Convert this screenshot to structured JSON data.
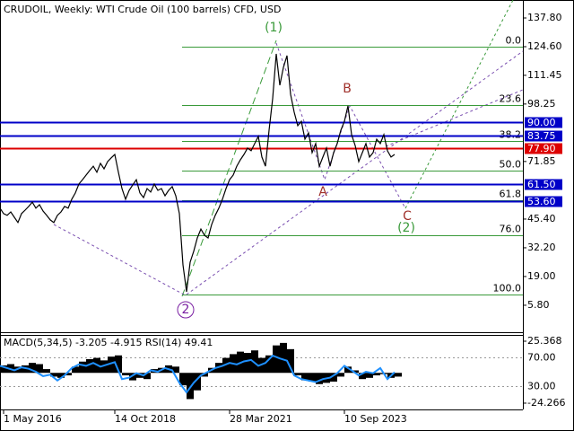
{
  "chart_data": [
    {
      "type": "line",
      "title": "CRUDOIL, Weekly:  WTI Crude Oil (100 barrels) CFD, USD",
      "categories": [
        null,
        "1 May 2016",
        null,
        null,
        null,
        null,
        null,
        null,
        null,
        null,
        null,
        null,
        null,
        null,
        null,
        null,
        null,
        null,
        null,
        null,
        null,
        null,
        null,
        null,
        null,
        null,
        null,
        null,
        null,
        null,
        null,
        null,
        "14 Oct 2018",
        null,
        null,
        null,
        null,
        null,
        null,
        null,
        null,
        null,
        null,
        null,
        null,
        null,
        null,
        null,
        null,
        null,
        null,
        null,
        null,
        null,
        null,
        null,
        null,
        null,
        null,
        null,
        null,
        null,
        null,
        null,
        "28 Mar 2021",
        null,
        null,
        null,
        null,
        null,
        null,
        null,
        null,
        null,
        null,
        null,
        null,
        null,
        null,
        null,
        null,
        null,
        null,
        null,
        null,
        null,
        null,
        null,
        null,
        null,
        null,
        null,
        null,
        null,
        null,
        null,
        "10 Sep 2023",
        null,
        null,
        null,
        null,
        null,
        null,
        null,
        null,
        null,
        null,
        null,
        null,
        null,
        null
      ],
      "values": [
        50.4,
        47.9,
        47.1,
        48.7,
        46.2,
        43.8,
        47.9,
        49.5,
        51.2,
        53.2,
        50.4,
        52.0,
        49.1,
        47.1,
        45.0,
        43.8,
        47.1,
        48.7,
        51.2,
        50.4,
        54.5,
        57.4,
        61.5,
        63.5,
        65.6,
        67.7,
        69.7,
        66.9,
        71.0,
        68.5,
        71.8,
        73.5,
        75.1,
        66.9,
        59.4,
        54.5,
        58.6,
        61.1,
        63.5,
        57.4,
        55.3,
        59.4,
        57.8,
        61.5,
        58.6,
        59.4,
        56.1,
        58.6,
        60.3,
        56.1,
        47.9,
        24.4,
        12.0,
        25.6,
        30.6,
        36.7,
        40.8,
        37.9,
        36.7,
        42.9,
        47.1,
        50.4,
        54.5,
        59.4,
        63.5,
        65.6,
        69.7,
        72.6,
        75.1,
        78.0,
        76.8,
        80.1,
        83.4,
        73.9,
        69.7,
        86.2,
        100.7,
        121.3,
        106.9,
        115.1,
        120.5,
        102.7,
        94.5,
        88.3,
        90.3,
        82.1,
        85.0,
        75.9,
        80.1,
        69.7,
        73.9,
        78.0,
        69.7,
        75.9,
        80.1,
        86.2,
        90.3,
        97.4,
        84.2,
        79.2,
        71.8,
        75.9,
        80.1,
        73.9,
        75.9,
        82.1,
        80.1,
        84.2,
        76.8,
        73.9,
        75.1
      ],
      "color": "#000000",
      "ylim": [
        -6.6,
        146.05
      ],
      "yticks": [
        {
          "value": 137.8,
          "label": "137.80"
        },
        {
          "value": 124.6,
          "label": "124.60"
        },
        {
          "value": 111.45,
          "label": "111.45"
        },
        {
          "value": 98.25,
          "label": "98.25"
        },
        {
          "value": 71.85,
          "label": "71.85"
        },
        {
          "value": 45.4,
          "label": "45.40"
        },
        {
          "value": 32.2,
          "label": "32.20"
        },
        {
          "value": 19,
          "label": "19.00"
        },
        {
          "value": 5.8,
          "label": "5.80"
        }
      ],
      "levels": [
        {
          "value": 90,
          "label": "90.00",
          "color": "#0000c8"
        },
        {
          "value": 83.75,
          "label": "83.75",
          "color": "#0000c8"
        },
        {
          "value": 77.9,
          "label": "77.90",
          "color": "#dd0000"
        },
        {
          "value": 61.5,
          "label": "61.50",
          "color": "#0000c8"
        },
        {
          "value": 53.6,
          "label": "53.60",
          "color": "#0000c8"
        }
      ],
      "fibonacci": [
        {
          "label": "0.0",
          "value": 124.6
        },
        {
          "label": "23.6",
          "value": 97.7
        },
        {
          "label": "38.2",
          "value": 81.1
        },
        {
          "label": "50.0",
          "value": 67.65
        },
        {
          "label": "61.8",
          "value": 54.2
        },
        {
          "label": "76.0",
          "value": 38.0
        },
        {
          "label": "100.0",
          "value": 10.7
        }
      ],
      "fib_color": "#3a9a3a",
      "annotations": [
        {
          "text": "(1)",
          "color": "#3a9a3a"
        },
        {
          "text": "(2)",
          "color": "#3a9a3a"
        },
        {
          "text": "2",
          "color": "#7a1fa2"
        },
        {
          "text": "A",
          "color": "#a0302a"
        },
        {
          "text": "B",
          "color": "#a0302a"
        },
        {
          "text": "C",
          "color": "#a0302a"
        }
      ]
    },
    {
      "type": "indicator",
      "title": "MACD(5,34,5) -3.205 -4.915 RSI(14) 49.41",
      "macd": {
        "color": "#000000",
        "values": [
          6,
          7,
          5,
          6,
          8,
          7,
          3,
          -3,
          -4,
          -2,
          5,
          9,
          11,
          12,
          10,
          13,
          14,
          -2,
          -6,
          -4,
          -5,
          3,
          4,
          6,
          5,
          -10,
          -21,
          -14,
          -3,
          4,
          8,
          12,
          15,
          17,
          16,
          18,
          12,
          14,
          22,
          24,
          19,
          -2,
          -6,
          -7,
          -9,
          -8,
          -7,
          -3,
          5,
          2,
          -5,
          -4,
          -2,
          -1,
          -4,
          -3
        ]
      },
      "rsi": {
        "color": "#1e90ff",
        "axis": "y2",
        "values": [
          58,
          55,
          52,
          56,
          54,
          50,
          44,
          46,
          38,
          45,
          55,
          60,
          58,
          62,
          57,
          60,
          63,
          40,
          42,
          48,
          45,
          52,
          50,
          55,
          52,
          35,
          22,
          35,
          45,
          50,
          55,
          58,
          62,
          60,
          64,
          66,
          58,
          62,
          72,
          68,
          65,
          45,
          40,
          38,
          36,
          40,
          42,
          48,
          58,
          52,
          45,
          50,
          48,
          55,
          40,
          49.41
        ]
      },
      "ylim": [
        -28.6,
        30.4
      ],
      "yticks": [
        25.368,
        -24.266
      ],
      "y2lim": [
        0,
        100
      ],
      "y2ticks": [
        {
          "value": 70,
          "label": "70.00"
        },
        {
          "value": 30,
          "label": "30.00"
        }
      ]
    }
  ]
}
